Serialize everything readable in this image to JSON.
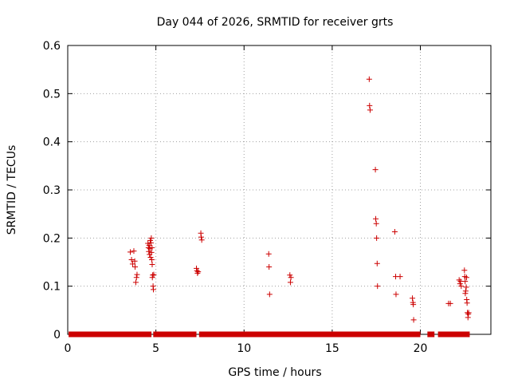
{
  "chart_data": {
    "type": "scatter",
    "title": "Day 044 of 2026, SRMTID for receiver grts",
    "xlabel": "GPS time / hours",
    "ylabel": "SRMTID / TECUs",
    "xlim": [
      0,
      24
    ],
    "ylim": [
      0,
      0.6
    ],
    "xticks": [
      0,
      5,
      10,
      15,
      20
    ],
    "xtick_labels": [
      "0",
      "5",
      "10",
      "15",
      "20"
    ],
    "yticks": [
      0,
      0.1,
      0.2,
      0.3,
      0.4,
      0.5,
      0.6
    ],
    "ytick_labels": [
      "0",
      "0.1",
      "0.2",
      "0.3",
      "0.4",
      "0.5",
      "0.6"
    ],
    "grid": true,
    "marker": "plus",
    "series_color": "#cc0000",
    "baseline_segments": [
      [
        0.05,
        4.75
      ],
      [
        4.85,
        7.3
      ],
      [
        7.45,
        20.0
      ],
      [
        20.4,
        20.8
      ],
      [
        21.0,
        22.8
      ]
    ],
    "points": [
      [
        3.55,
        0.171
      ],
      [
        3.62,
        0.155
      ],
      [
        3.68,
        0.146
      ],
      [
        3.75,
        0.173
      ],
      [
        3.8,
        0.152
      ],
      [
        3.82,
        0.14
      ],
      [
        3.86,
        0.108
      ],
      [
        3.9,
        0.118
      ],
      [
        3.93,
        0.124
      ],
      [
        4.55,
        0.189
      ],
      [
        4.58,
        0.18
      ],
      [
        4.6,
        0.172
      ],
      [
        4.62,
        0.185
      ],
      [
        4.64,
        0.166
      ],
      [
        4.66,
        0.178
      ],
      [
        4.68,
        0.195
      ],
      [
        4.7,
        0.16
      ],
      [
        4.72,
        0.19
      ],
      [
        4.74,
        0.2
      ],
      [
        4.75,
        0.17
      ],
      [
        4.77,
        0.155
      ],
      [
        4.78,
        0.18
      ],
      [
        4.79,
        0.145
      ],
      [
        4.8,
        0.118
      ],
      [
        4.82,
        0.123
      ],
      [
        4.84,
        0.1
      ],
      [
        4.86,
        0.093
      ],
      [
        4.88,
        0.124
      ],
      [
        7.3,
        0.137
      ],
      [
        7.33,
        0.132
      ],
      [
        7.36,
        0.127
      ],
      [
        7.4,
        0.13
      ],
      [
        7.55,
        0.21
      ],
      [
        7.57,
        0.202
      ],
      [
        7.6,
        0.196
      ],
      [
        11.4,
        0.167
      ],
      [
        11.42,
        0.14
      ],
      [
        11.45,
        0.083
      ],
      [
        12.6,
        0.123
      ],
      [
        12.63,
        0.108
      ],
      [
        12.66,
        0.118
      ],
      [
        17.1,
        0.53
      ],
      [
        17.12,
        0.475
      ],
      [
        17.15,
        0.466
      ],
      [
        17.45,
        0.342
      ],
      [
        17.47,
        0.24
      ],
      [
        17.5,
        0.23
      ],
      [
        17.52,
        0.2
      ],
      [
        17.55,
        0.147
      ],
      [
        17.57,
        0.1
      ],
      [
        18.55,
        0.213
      ],
      [
        18.6,
        0.12
      ],
      [
        18.62,
        0.083
      ],
      [
        18.85,
        0.12
      ],
      [
        19.55,
        0.075
      ],
      [
        19.58,
        0.066
      ],
      [
        19.6,
        0.062
      ],
      [
        19.62,
        0.03
      ],
      [
        21.6,
        0.064
      ],
      [
        21.7,
        0.064
      ],
      [
        22.2,
        0.113
      ],
      [
        22.25,
        0.105
      ],
      [
        22.28,
        0.11
      ],
      [
        22.32,
        0.1
      ],
      [
        22.5,
        0.133
      ],
      [
        22.52,
        0.12
      ],
      [
        22.54,
        0.11
      ],
      [
        22.55,
        0.085
      ],
      [
        22.57,
        0.09
      ],
      [
        22.6,
        0.098
      ],
      [
        22.62,
        0.118
      ],
      [
        22.63,
        0.072
      ],
      [
        22.65,
        0.065
      ],
      [
        22.67,
        0.045
      ],
      [
        22.7,
        0.035
      ],
      [
        22.72,
        0.042
      ],
      [
        22.74,
        0.045
      ]
    ]
  }
}
